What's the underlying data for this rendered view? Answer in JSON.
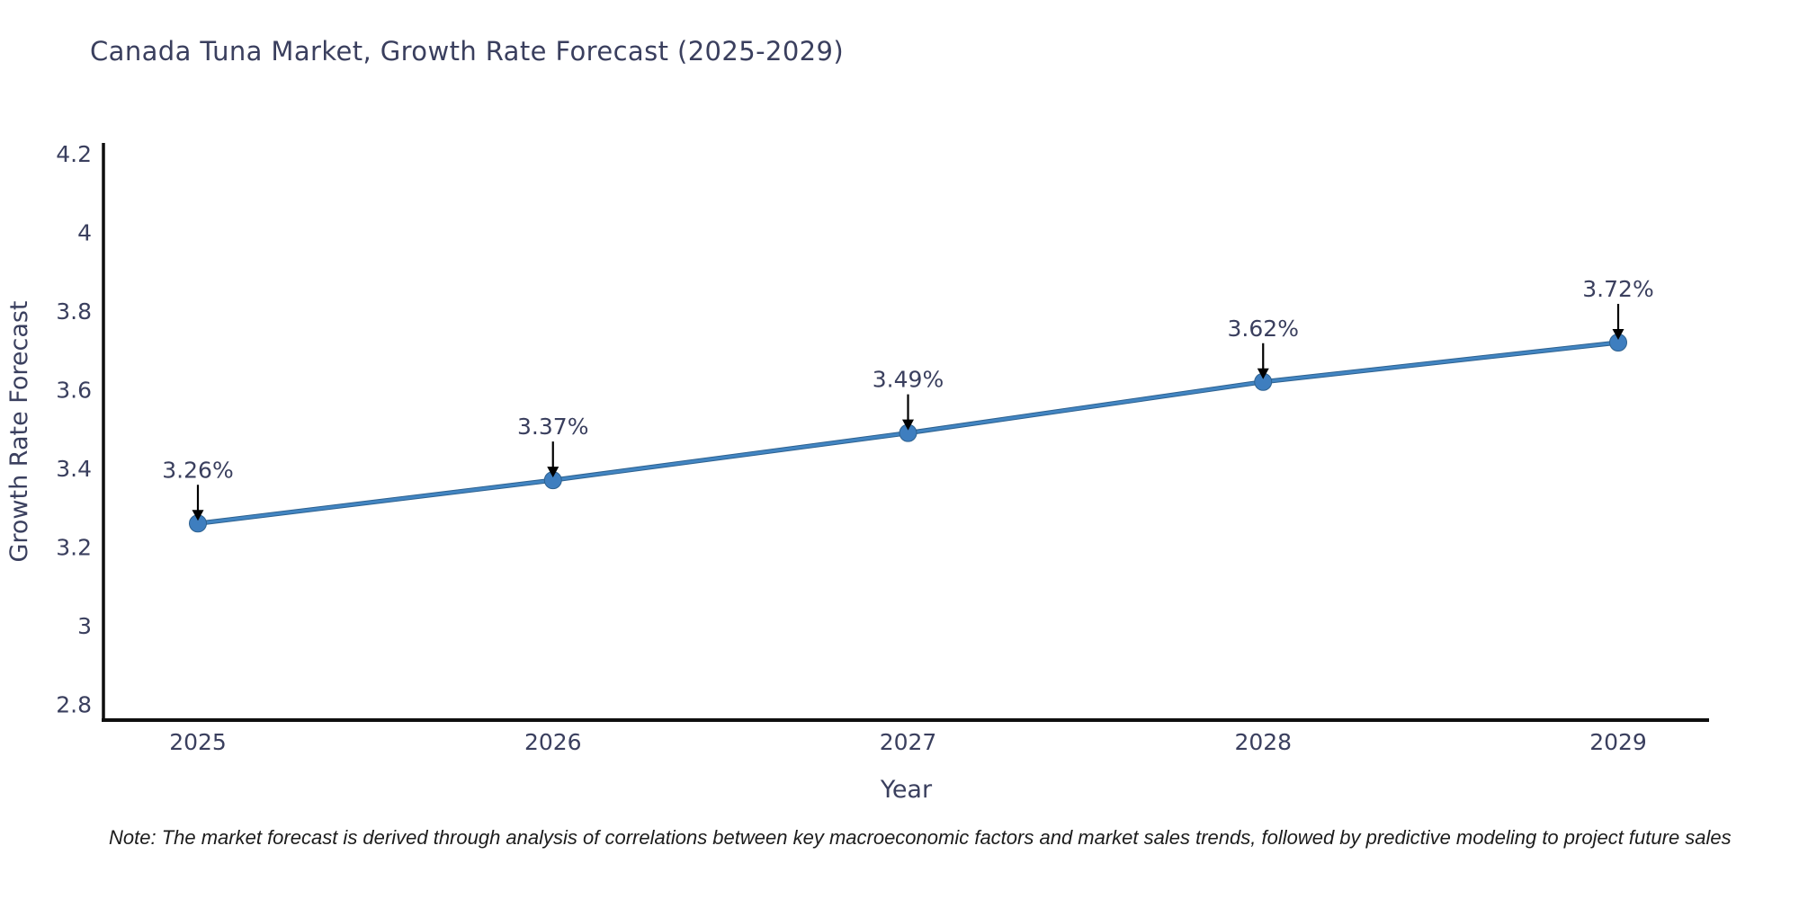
{
  "chart_data": {
    "type": "line",
    "title": "Canada Tuna Market, Growth Rate Forecast (2025-2029)",
    "xlabel": "Year",
    "ylabel": "Growth Rate Forecast",
    "categories": [
      "2025",
      "2026",
      "2027",
      "2028",
      "2029"
    ],
    "values": [
      3.26,
      3.37,
      3.49,
      3.62,
      3.72
    ],
    "point_labels": [
      "3.26%",
      "3.37%",
      "3.49%",
      "3.62%",
      "3.72%"
    ],
    "ytick_labels": [
      "2.8",
      "3",
      "3.2",
      "3.4",
      "3.6",
      "3.8",
      "4",
      "4.2"
    ],
    "ytick_values": [
      2.8,
      3.0,
      3.2,
      3.4,
      3.6,
      3.8,
      4.0,
      4.2
    ],
    "ylim": [
      2.76,
      4.23
    ],
    "grid": false,
    "legend": "none",
    "annotations": "value label with black down-arrow above each data point",
    "colors": {
      "line": "#4285c2",
      "line_edge": "#2d618f",
      "marker": "#3e7ebf",
      "axis": "#0f0f0f",
      "text": "#3a3f5e",
      "arrow": "#000000",
      "note_text": "#1c1c1c"
    }
  },
  "note": {
    "text": "Note: The market forecast is derived through analysis of correlations between key macroeconomic factors and market sales trends, followed by predictive modeling to project future sales"
  }
}
